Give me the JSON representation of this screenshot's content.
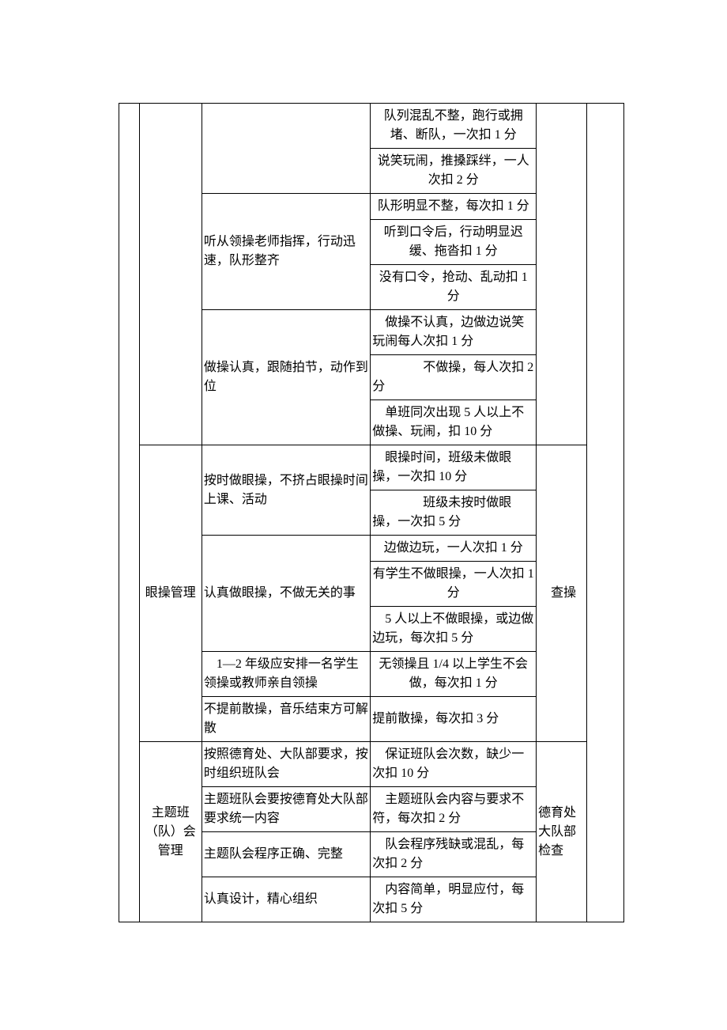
{
  "rows": [
    {
      "c3": "队列混乱不整，跑行或拥堵、断队，一次扣 1 分",
      "c3_align": "center"
    },
    {
      "c3": "说笑玩闹，推搡踩绊，一人次扣 2 分",
      "c3_align": "center"
    },
    {
      "c2": "听从领操老师指挥，行动迅速，队形整齐",
      "c2_rows": 3,
      "c3": "队形明显不整，每次扣 1 分",
      "c3_align": "center"
    },
    {
      "c3": "听到口令后，行动明显迟缓、拖沓扣 1 分",
      "c3_align": "center"
    },
    {
      "c3": "没有口令，抢动、乱动扣 1 分",
      "c3_align": "center"
    },
    {
      "c2": "做操认真，跟随拍节，动作到位",
      "c2_rows": 3,
      "c3": "做操不认真，边做边说笑玩闹每人次扣 1 分",
      "c3_align": "left",
      "c3_indent": true
    },
    {
      "c3": "不做操，每人次扣 2 分",
      "c3_align": "left",
      "c3_right_first": true
    },
    {
      "c3": "单班同次出现 5 人以上不做操、玩闹，扣 10 分",
      "c3_align": "left",
      "c3_indent": true
    },
    {
      "c1": "眼操管理",
      "c1_rows": 7,
      "c2": "按时做眼操，不挤占眼操时间上课、活动",
      "c2_rows": 2,
      "c3": "眼操时间，班级未做眼操，一次扣 10 分",
      "c3_align": "left",
      "c3_indent": true,
      "c4": "查操",
      "c4_rows": 7,
      "c4_indent": true
    },
    {
      "c3": "班级未按时做眼操，一次扣 5 分",
      "c3_align": "left",
      "c3_right_first": true
    },
    {
      "c2": "认真做眼操，不做无关的事",
      "c2_rows": 3,
      "c3": "边做边玩，一人次扣 1 分",
      "c3_align": "center"
    },
    {
      "c3": "有学生不做眼操，一人次扣 1 分",
      "c3_align": "center"
    },
    {
      "c3": "5 人以上不做眼操，或边做边玩，每次扣 5 分",
      "c3_align": "left",
      "c3_indent": true
    },
    {
      "c2": "1—2 年级应安排一名学生领操或教师亲自领操",
      "c2_align": "left",
      "c2_indent": true,
      "c3": "无领操且 1/4 以上学生不会做，每次扣 1 分",
      "c3_align": "center"
    },
    {
      "c2": "不提前散操，音乐结束方可解散",
      "c3": "提前散操，每次扣 3 分",
      "c3_align": "left"
    },
    {
      "c1": "主题班（队）会管理",
      "c1_rows": 4,
      "c2": "按照德育处、大队部要求，按时组织班队会",
      "c3": "保证班队会次数，缺少一次扣 10 分",
      "c3_align": "left",
      "c3_indent": true,
      "c4": "德育处大队部检查",
      "c4_rows": 4
    },
    {
      "c2": "主题班队会要按德育处大队部要求统一内容",
      "c3": "主题班队会内容与要求不符，每次扣 2 分",
      "c3_align": "left",
      "c3_indent": true
    },
    {
      "c2": "主题队会程序正确、完整",
      "c3": "队会程序残缺或混乱，每次扣 2 分",
      "c3_align": "left",
      "c3_indent": true
    },
    {
      "c2": "认真设计，精心组织",
      "c3": "内容简单，明显应付，每次扣 5 分",
      "c3_align": "left",
      "c3_indent": true
    }
  ]
}
